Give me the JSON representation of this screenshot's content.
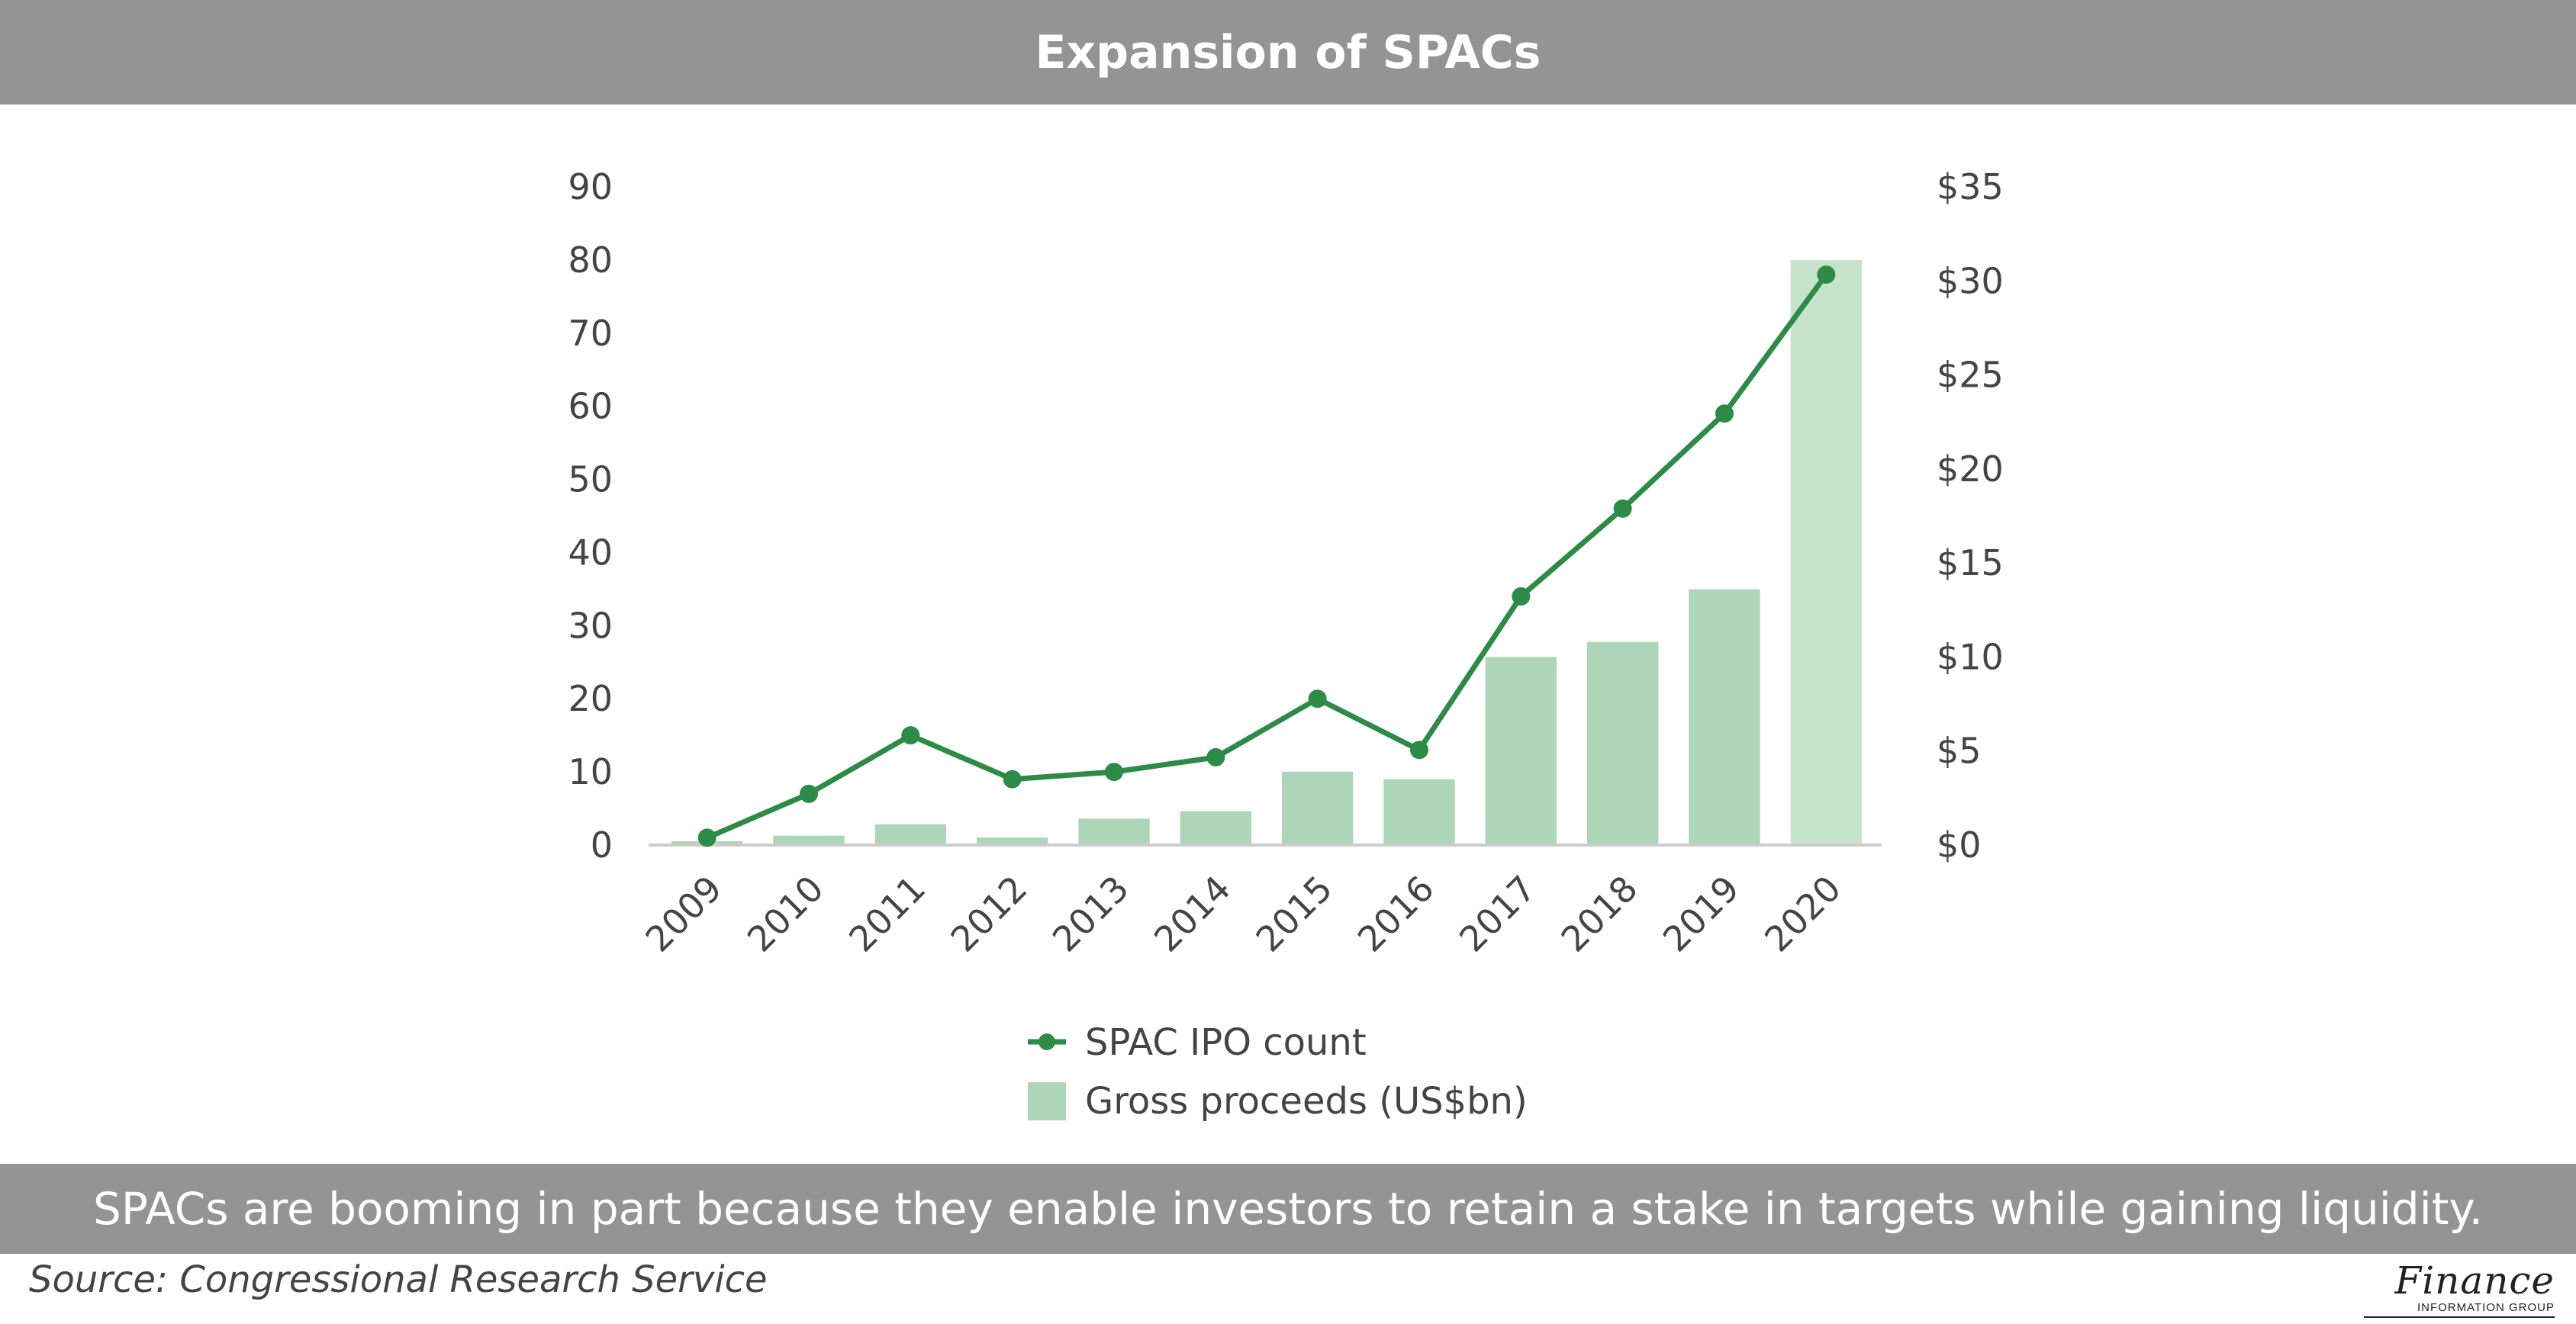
{
  "title": "Expansion of SPACs",
  "caption": "SPACs are booming in part because they enable investors to retain a stake in targets while gaining liquidity.",
  "source": "Source: Congressional Research Service",
  "logo": {
    "main": "Finance",
    "sub": "INFORMATION GROUP"
  },
  "colors": {
    "bar": "#add5b7",
    "bar_highlight": "#c5e2cb",
    "line": "#2e8b47",
    "axis": "#cccccc",
    "banner": "#949494"
  },
  "chart_data": {
    "type": "bar",
    "categories": [
      "2009",
      "2010",
      "2011",
      "2012",
      "2013",
      "2014",
      "2015",
      "2016",
      "2017",
      "2018",
      "2019",
      "2020"
    ],
    "series": [
      {
        "name": "SPAC IPO count",
        "type": "line",
        "axis": "left",
        "values": [
          1,
          7,
          15,
          9,
          10,
          12,
          20,
          13,
          34,
          46,
          59,
          78
        ]
      },
      {
        "name": "Gross proceeds (US$bn)",
        "type": "bar",
        "axis": "right",
        "values": [
          0.2,
          0.5,
          1.1,
          0.4,
          1.4,
          1.8,
          3.9,
          3.5,
          10.0,
          10.8,
          13.6,
          31.1
        ]
      }
    ],
    "left_axis": {
      "ticks": [
        "0",
        "10",
        "20",
        "30",
        "40",
        "50",
        "60",
        "70",
        "80",
        "90"
      ],
      "ylim": [
        0,
        90
      ]
    },
    "right_axis": {
      "ticks": [
        "$0",
        "$5",
        "$10",
        "$15",
        "$20",
        "$25",
        "$30",
        "$35"
      ],
      "ylim": [
        0,
        35
      ]
    },
    "grid": false,
    "legend_position": "bottom"
  }
}
